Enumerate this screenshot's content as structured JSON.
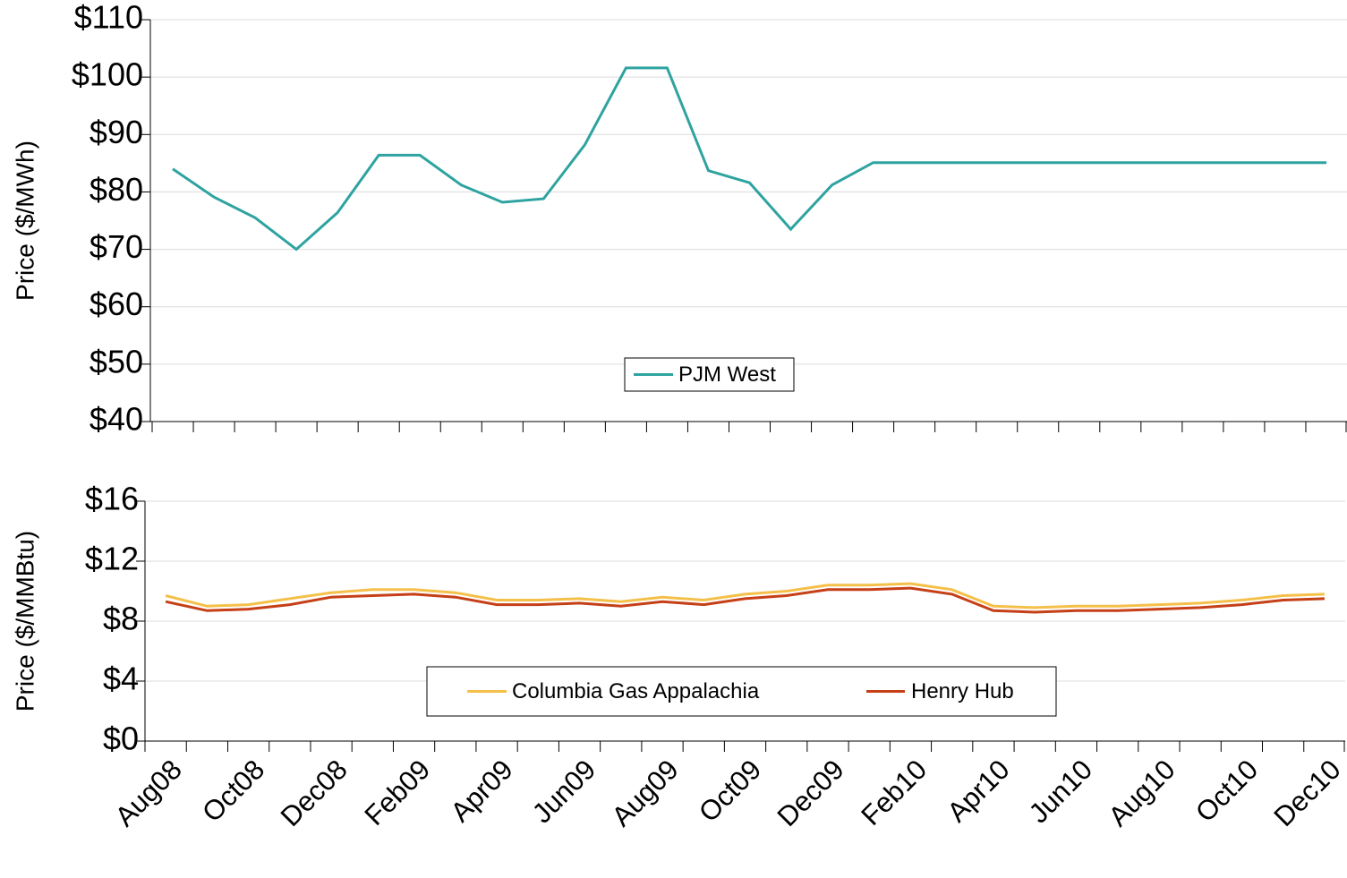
{
  "chart_data": [
    {
      "type": "line",
      "y_label": "Price ($/MWh)",
      "ylim": [
        40,
        110
      ],
      "yticks": [
        {
          "value": 40,
          "label": "$40"
        },
        {
          "value": 50,
          "label": "$50"
        },
        {
          "value": 60,
          "label": "$60"
        },
        {
          "value": 70,
          "label": "$70"
        },
        {
          "value": 80,
          "label": "$80"
        },
        {
          "value": 90,
          "label": "$90"
        },
        {
          "value": 100,
          "label": "$100"
        },
        {
          "value": 110,
          "label": "$110"
        }
      ],
      "grid": true,
      "series": [
        {
          "name": "PJM West",
          "color": "#2ea3a0",
          "values": [
            84,
            79.1,
            75.5,
            70,
            76.4,
            86.4,
            86.4,
            81.2,
            78.2,
            78.8,
            88.2,
            101.6,
            101.6,
            83.7,
            81.6,
            73.5,
            81.2,
            85.1,
            85.1,
            85.1,
            85.1,
            85.1,
            85.1,
            85.1,
            85.1,
            85.1,
            85.1,
            85.1,
            85.1
          ]
        }
      ]
    },
    {
      "type": "line",
      "y_label": "Price ($/MMBtu)",
      "categories": [
        "Aug08",
        null,
        "Oct08",
        null,
        "Dec08",
        null,
        "Feb09",
        null,
        "Apr09",
        null,
        "Jun09",
        null,
        "Aug09",
        null,
        "Oct09",
        null,
        "Dec09",
        null,
        "Feb10",
        null,
        "Apr10",
        null,
        "Jun10",
        null,
        "Aug10",
        null,
        "Oct10",
        null,
        "Dec10"
      ],
      "ylim": [
        0,
        16
      ],
      "yticks": [
        {
          "value": 0,
          "label": "$0"
        },
        {
          "value": 4,
          "label": "$4"
        },
        {
          "value": 8,
          "label": "$8"
        },
        {
          "value": 12,
          "label": "$12"
        },
        {
          "value": 16,
          "label": "$16"
        }
      ],
      "grid": true,
      "series": [
        {
          "name": "Columbia Gas Appalachia",
          "color": "#f5c04a",
          "values": [
            9.7,
            9.0,
            9.1,
            9.5,
            9.9,
            10.1,
            10.1,
            9.9,
            9.4,
            9.4,
            9.5,
            9.3,
            9.6,
            9.4,
            9.8,
            10.0,
            10.4,
            10.4,
            10.5,
            10.1,
            9.0,
            8.9,
            9.0,
            9.0,
            9.1,
            9.2,
            9.4,
            9.7,
            9.8
          ]
        },
        {
          "name": "Henry Hub",
          "color": "#c53f17",
          "values": [
            9.3,
            8.7,
            8.8,
            9.1,
            9.6,
            9.7,
            9.8,
            9.6,
            9.1,
            9.1,
            9.2,
            9.0,
            9.3,
            9.1,
            9.5,
            9.7,
            10.1,
            10.1,
            10.2,
            9.8,
            8.7,
            8.6,
            8.7,
            8.7,
            8.8,
            8.9,
            9.1,
            9.4,
            9.5
          ]
        }
      ]
    }
  ]
}
